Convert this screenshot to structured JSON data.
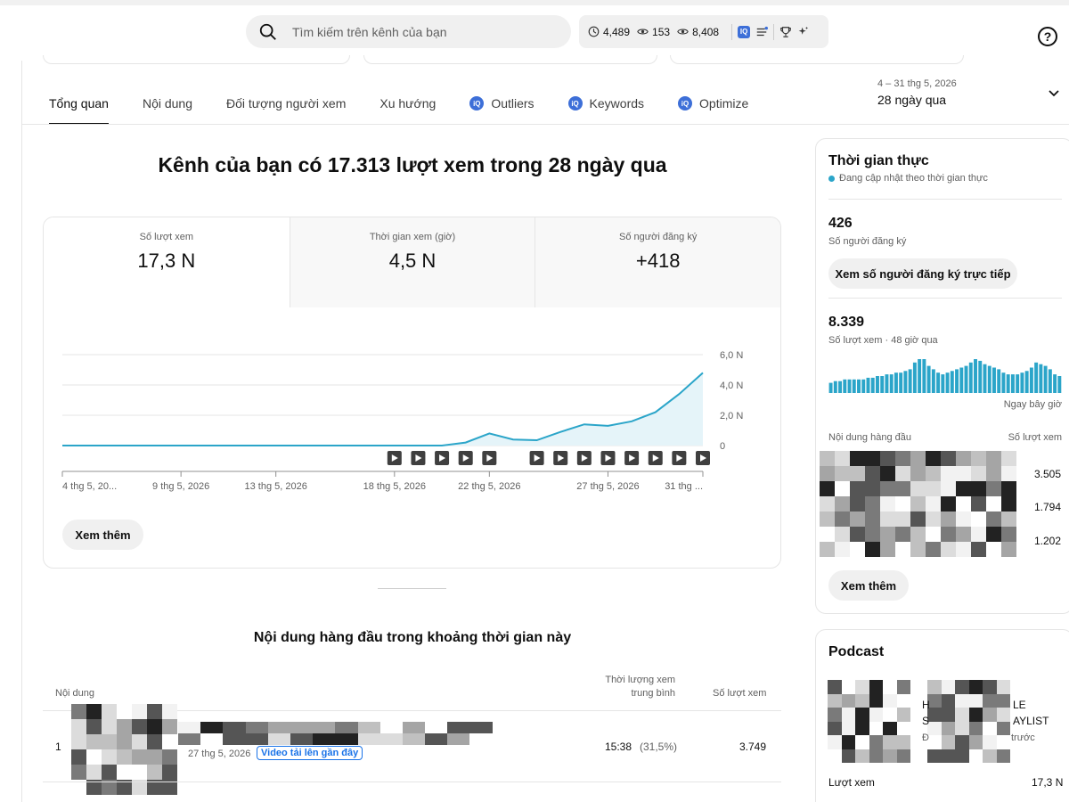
{
  "search": {
    "placeholder": "Tìm kiếm trên kênh của bạn"
  },
  "toolbar_stats": [
    {
      "icon": "clock-icon",
      "value": "4,489"
    },
    {
      "icon": "eye-icon",
      "value": "153"
    },
    {
      "icon": "eye-icon",
      "value": "8,408"
    }
  ],
  "toolbar_badge": "IQ",
  "help": "?",
  "tabs": [
    {
      "label": "Tổng quan",
      "active": true
    },
    {
      "label": "Nội dung"
    },
    {
      "label": "Đối tượng người xem"
    },
    {
      "label": "Xu hướng"
    },
    {
      "label": "Outliers",
      "icon": "vidiq-icon"
    },
    {
      "label": "Keywords",
      "icon": "vidiq-icon"
    },
    {
      "label": "Optimize",
      "icon": "vidiq-icon"
    }
  ],
  "daterange": {
    "sub": "4 – 31 thg 5, 2026",
    "main": "28 ngày qua"
  },
  "headline": "Kênh của bạn có 17.313 lượt xem trong 28 ngày qua",
  "metrics": [
    {
      "label": "Số lượt xem",
      "value": "17,3 N"
    },
    {
      "label": "Thời gian xem (giờ)",
      "value": "4,5 N"
    },
    {
      "label": "Số người đăng ký",
      "value": "+418"
    }
  ],
  "chart_data": {
    "type": "area",
    "x": [
      "4 thg 5",
      "5",
      "6",
      "7",
      "8",
      "9",
      "10",
      "11",
      "12",
      "13",
      "14",
      "15",
      "16",
      "17",
      "18",
      "19",
      "20",
      "21",
      "22",
      "23",
      "24",
      "25",
      "26",
      "27",
      "28",
      "29",
      "30",
      "31"
    ],
    "series": [
      {
        "values": [
          0,
          0,
          0,
          0,
          0,
          0,
          0,
          0,
          0,
          0,
          0,
          0,
          0,
          0,
          0,
          0,
          0,
          0.2,
          0.8,
          0.4,
          0.35,
          0.9,
          1.4,
          1.3,
          1.6,
          2.2,
          3.4,
          4.8
        ]
      }
    ],
    "ylim": [
      0,
      6
    ],
    "yticks": [
      "0",
      "2,0 N",
      "4,0 N",
      "6,0 N"
    ],
    "yticks_values": [
      0,
      2,
      4,
      6
    ],
    "xticks": [
      "4 thg 5, 20...",
      "9 thg 5, 2026",
      "13 thg 5, 2026",
      "18 thg 5, 2026",
      "22 thg 5, 2026",
      "27 thg 5, 2026",
      "31 thg ..."
    ],
    "xticks_index": [
      0,
      5,
      9,
      14,
      18,
      23,
      27
    ],
    "video_markers_index": [
      14,
      15,
      16,
      17,
      18,
      20,
      21,
      22,
      23,
      24,
      25,
      26,
      27
    ],
    "grid": true,
    "color": "#2ba5c9"
  },
  "see_more": "Xem thêm",
  "top_content": {
    "title": "Nội dung hàng đầu trong khoảng thời gian này",
    "col_content": "Nội dung",
    "col_avg": "Thời lượng xem trung bình",
    "col_views": "Số lượt xem",
    "rows": [
      {
        "rank": "1",
        "date": "27 thg 5, 2026",
        "badge": "Video tải lên gần đây",
        "avg": "15:38",
        "pct": "(31,5%)",
        "views": "3.749"
      }
    ]
  },
  "realtime": {
    "title": "Thời gian thực",
    "sub": "Đang cập nhật theo thời gian thực",
    "subs_value": "426",
    "subs_label": "Số người đăng ký",
    "live_button": "Xem số người đăng ký trực tiếp",
    "views_value": "8.339",
    "views_label": "Số lượt xem · 48 giờ qua",
    "bars": [
      0.3,
      0.35,
      0.35,
      0.4,
      0.4,
      0.4,
      0.4,
      0.4,
      0.45,
      0.45,
      0.5,
      0.5,
      0.55,
      0.55,
      0.6,
      0.6,
      0.65,
      0.7,
      0.9,
      1.0,
      1.0,
      0.8,
      0.7,
      0.6,
      0.55,
      0.6,
      0.65,
      0.7,
      0.75,
      0.8,
      0.9,
      1.0,
      0.95,
      0.85,
      0.8,
      0.75,
      0.7,
      0.6,
      0.55,
      0.55,
      0.55,
      0.6,
      0.65,
      0.75,
      0.9,
      0.85,
      0.8,
      0.7,
      0.55,
      0.5
    ],
    "bars_note": "Ngay bây giờ",
    "top_label": "Nội dung hàng đầu",
    "views_col": "Số lượt xem",
    "top_values": [
      "3.505",
      "1.794",
      "1.202"
    ],
    "see_more": "Xem thêm"
  },
  "podcast": {
    "title": "Podcast",
    "text1": "H",
    "text1b": "LE",
    "text2": "S",
    "text2b": "AYLIST",
    "text3": "Đ",
    "text3b": "trước",
    "foot_label": "Lượt xem",
    "foot_value": "17,3 N"
  }
}
